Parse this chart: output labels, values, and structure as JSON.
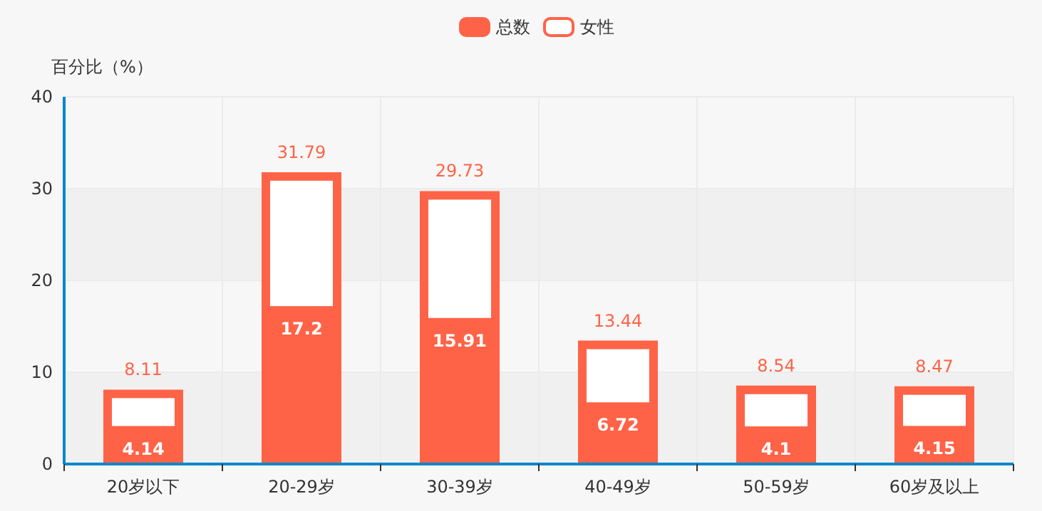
{
  "chart_data": {
    "type": "bar",
    "ylabel": "百分比（%）",
    "categories": [
      "20岁以下",
      "20-29岁",
      "30-39岁",
      "40-49岁",
      "50-59岁",
      "60岁及以上"
    ],
    "series": [
      {
        "name": "总数",
        "color": "#ff6347",
        "values": [
          8.11,
          31.79,
          29.73,
          13.44,
          8.54,
          8.47
        ]
      },
      {
        "name": "女性",
        "color": "#ff6347",
        "values": [
          4.14,
          17.2,
          15.91,
          6.72,
          4.1,
          4.15
        ]
      }
    ],
    "ylim": [
      0,
      40
    ],
    "yticks": [
      0,
      10,
      20,
      30,
      40
    ],
    "grid": true,
    "legend": "top",
    "data_labels": true
  }
}
